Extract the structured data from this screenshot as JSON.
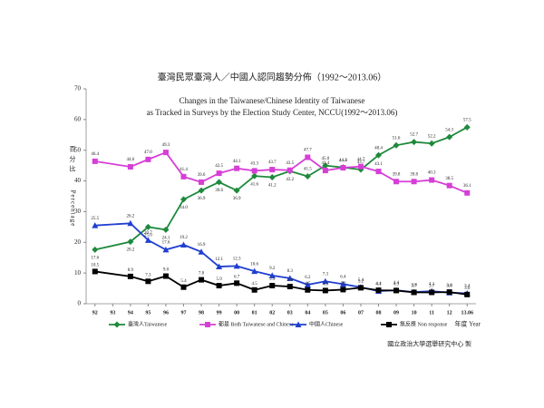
{
  "chart_data": {
    "type": "line",
    "title": "臺灣民眾臺灣人／中國人認同趨勢分佈（1992～2013.06）",
    "subtitle": [
      "Changes in the Taiwanese/Chinese Identity of Taiwanese",
      "as Tracked in Surveys by the Election Study Center, NCCU(1992～2013.06)"
    ],
    "y_label": [
      "百",
      "分",
      "比",
      "Percentage"
    ],
    "x_label": "年度 Year",
    "credit": "國立政治大學選舉研究中心 製",
    "x": [
      1992,
      1994,
      1995,
      1996,
      1997,
      1998,
      1999,
      2000,
      2001,
      2002,
      2003,
      2004,
      2005,
      2006,
      2007,
      2008,
      2009,
      2010,
      2011,
      2012,
      2013
    ],
    "xlim": [
      1991.5,
      2013.5
    ],
    "xticks": [
      {
        "value": 1992,
        "label": "92"
      },
      {
        "value": 1993,
        "label": "93"
      },
      {
        "value": 1994,
        "label": "94"
      },
      {
        "value": 1995,
        "label": "95"
      },
      {
        "value": 1996,
        "label": "96"
      },
      {
        "value": 1997,
        "label": "97"
      },
      {
        "value": 1998,
        "label": "98"
      },
      {
        "value": 1999,
        "label": "99"
      },
      {
        "value": 2000,
        "label": "00"
      },
      {
        "value": 2001,
        "label": "01"
      },
      {
        "value": 2002,
        "label": "02"
      },
      {
        "value": 2003,
        "label": "03"
      },
      {
        "value": 2004,
        "label": "04"
      },
      {
        "value": 2005,
        "label": "05"
      },
      {
        "value": 2006,
        "label": "06"
      },
      {
        "value": 2007,
        "label": "07"
      },
      {
        "value": 2008,
        "label": "08"
      },
      {
        "value": 2009,
        "label": "09"
      },
      {
        "value": 2010,
        "label": "10"
      },
      {
        "value": 2011,
        "label": "11"
      },
      {
        "value": 2012,
        "label": "12"
      },
      {
        "value": 2013,
        "label": "13.06"
      }
    ],
    "ylim": [
      0,
      70
    ],
    "yticks": [
      0,
      10,
      20,
      30,
      40,
      50,
      60,
      70
    ],
    "series": [
      {
        "name": "臺灣人Taiwanese",
        "color": "#1e8a3c",
        "marker": "diamond",
        "values": [
          17.6,
          20.2,
          25.0,
          24.1,
          34.0,
          36.9,
          39.6,
          36.9,
          41.6,
          41.2,
          43.2,
          41.5,
          45.0,
          44.4,
          43.7,
          48.4,
          51.6,
          52.7,
          52.2,
          54.3,
          57.5
        ],
        "value_labels": [
          "17.6",
          "20.2",
          "25.0",
          "24.1",
          "34.0",
          "36.9",
          "39.6",
          "36.9",
          "41.6",
          "41.2",
          "43.2",
          "41.5",
          "45.0",
          "44.4",
          "43.7",
          "48.4",
          "51.6",
          "52.7",
          "52.2",
          "54.3",
          "57.5"
        ]
      },
      {
        "name": "都是 Both Taiwanese and Chinese",
        "color": "#d63fd6",
        "marker": "square",
        "values": [
          46.4,
          44.6,
          47.0,
          49.3,
          41.4,
          39.6,
          42.5,
          44.1,
          43.3,
          43.7,
          43.5,
          47.7,
          43.4,
          44.3,
          44.7,
          43.1,
          39.8,
          39.8,
          40.3,
          38.5,
          36.1
        ],
        "value_labels": [
          "46.4",
          "44.6",
          "47.0",
          "49.3",
          "41.4",
          "39.6",
          "42.5",
          "44.1",
          "43.3",
          "43.7",
          "43.5",
          "47.7",
          "43.4",
          "44.3",
          "44.7",
          "43.1",
          "39.8",
          "39.8",
          "40.3",
          "38.5",
          "36.1"
        ]
      },
      {
        "name": "中國人Chinese",
        "color": "#1f3fd0",
        "marker": "triangle",
        "values": [
          25.5,
          26.2,
          20.7,
          17.6,
          19.2,
          16.9,
          12.1,
          12.3,
          10.6,
          9.2,
          8.3,
          6.2,
          7.3,
          6.4,
          5.4,
          4.1,
          4.4,
          3.8,
          4.1,
          3.6,
          3.4
        ],
        "value_labels": [
          "25.5",
          "26.2",
          "20.7",
          "17.6",
          "19.2",
          "16.9",
          "12.1",
          "12.3",
          "10.6",
          "9.2",
          "8.3",
          "6.2",
          "7.3",
          "6.4",
          "5.4",
          "4.1",
          "4.4",
          "3.8",
          "4.1",
          "3.6",
          "3.4"
        ]
      },
      {
        "name": "無反應 Non response",
        "color": "#000000",
        "marker": "square",
        "values": [
          10.5,
          8.9,
          7.3,
          9.0,
          5.4,
          7.8,
          5.9,
          6.7,
          4.5,
          5.9,
          5.6,
          4.5,
          4.3,
          4.6,
          5.2,
          4.4,
          4.3,
          3.7,
          3.7,
          3.8,
          3.0
        ],
        "value_labels": [
          "10.5",
          "8.9",
          "7.3",
          "9.0",
          "5.4",
          "7.8",
          "5.9",
          "6.7",
          "4.5",
          "5.9",
          "5.6",
          "4.5",
          "4.3",
          "4.6",
          "5.2",
          "4.4",
          "4.3",
          "3.7",
          "3.7",
          "3.8",
          "3.0"
        ]
      }
    ]
  }
}
